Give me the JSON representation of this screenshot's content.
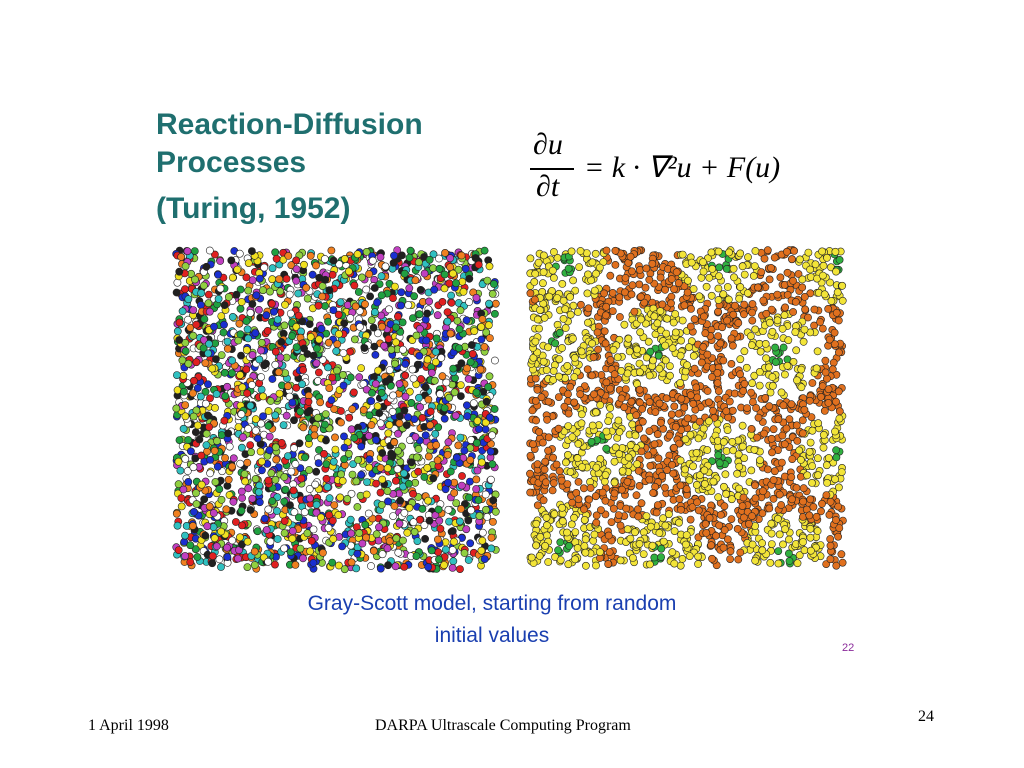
{
  "slide": {
    "title": [
      "Reaction-Diffusion",
      "Processes",
      "(Turing, 1952)"
    ],
    "equation": {
      "numerator": "∂u",
      "denominator": "∂t",
      "rhs": "= k · ∇²u + F(u)"
    },
    "caption": [
      "Gray-Scott model, starting from random",
      "initial values"
    ],
    "source_page": "22"
  },
  "footer": {
    "date": "1 April 1998",
    "program": "DARPA Ultrascale Computing Program",
    "page_number": "24"
  }
}
